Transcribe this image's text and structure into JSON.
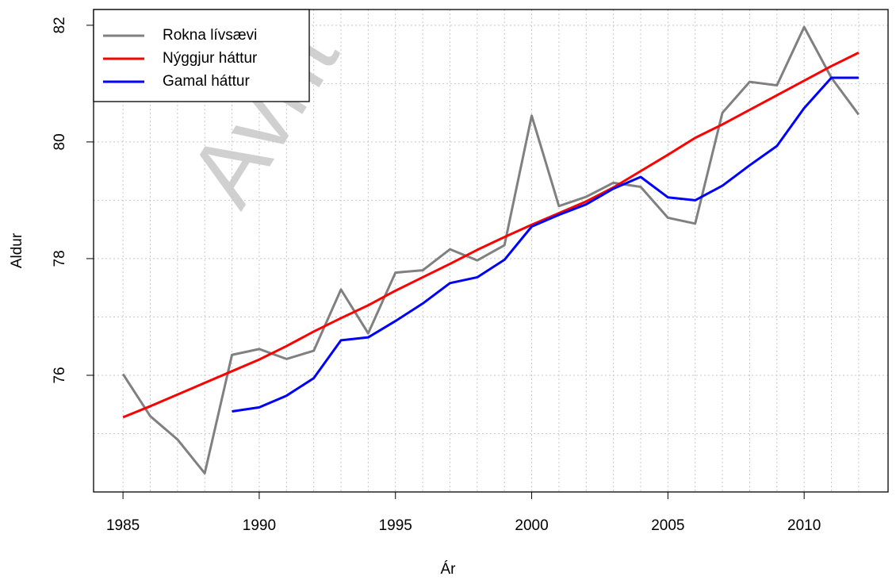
{
  "chart_data": {
    "type": "line",
    "watermark": "Avrit",
    "x_label": "Ár",
    "y_label": "Aldur",
    "x": [
      1985,
      1986,
      1987,
      1988,
      1989,
      1990,
      1991,
      1992,
      1993,
      1994,
      1995,
      1996,
      1997,
      1998,
      1999,
      2000,
      2001,
      2002,
      2003,
      2004,
      2005,
      2006,
      2007,
      2008,
      2009,
      2010,
      2011,
      2012
    ],
    "series": [
      {
        "name": "Rokna lívsævi",
        "color": "#808080",
        "values": [
          76.02,
          75.3,
          74.9,
          74.32,
          76.35,
          76.45,
          76.28,
          76.42,
          77.47,
          76.72,
          77.76,
          77.8,
          78.16,
          77.97,
          78.23,
          80.45,
          78.9,
          79.06,
          79.3,
          79.23,
          78.7,
          78.6,
          80.5,
          81.03,
          80.97,
          81.97,
          81.1,
          80.47
        ]
      },
      {
        "name": "Nýggjur háttur",
        "color": "#ff0000",
        "values": [
          75.28,
          75.47,
          75.67,
          75.87,
          76.07,
          76.27,
          76.5,
          76.75,
          76.98,
          77.2,
          77.45,
          77.68,
          77.91,
          78.15,
          78.37,
          78.58,
          78.78,
          78.98,
          79.22,
          79.5,
          79.78,
          80.07,
          80.3,
          80.55,
          80.8,
          81.05,
          81.3,
          81.53
        ]
      },
      {
        "name": "Gamal háttur",
        "color": "#0000ff",
        "values": [
          null,
          null,
          null,
          null,
          75.38,
          75.45,
          75.65,
          75.95,
          76.6,
          76.65,
          76.93,
          77.23,
          77.58,
          77.68,
          77.98,
          78.55,
          78.75,
          78.93,
          79.2,
          79.4,
          79.05,
          79.0,
          79.25,
          79.6,
          79.93,
          80.58,
          81.1,
          81.1
        ]
      }
    ],
    "xlim": [
      1983.92,
      2013.08
    ],
    "ylim": [
      74.0,
      82.27
    ],
    "xticks": [
      1985,
      1990,
      1995,
      2000,
      2005,
      2010
    ],
    "yticks": [
      76,
      78,
      80,
      82
    ],
    "x_grid": [
      1985,
      1986,
      1987,
      1988,
      1989,
      1990,
      1991,
      1992,
      1993,
      1994,
      1995,
      1996,
      1997,
      1998,
      1999,
      2000,
      2001,
      2002,
      2003,
      2004,
      2005,
      2006,
      2007,
      2008,
      2009,
      2010,
      2011,
      2012
    ],
    "y_grid": [
      75,
      76,
      77,
      78,
      79,
      80,
      81,
      82
    ],
    "grid": true,
    "legend": "top-left"
  }
}
